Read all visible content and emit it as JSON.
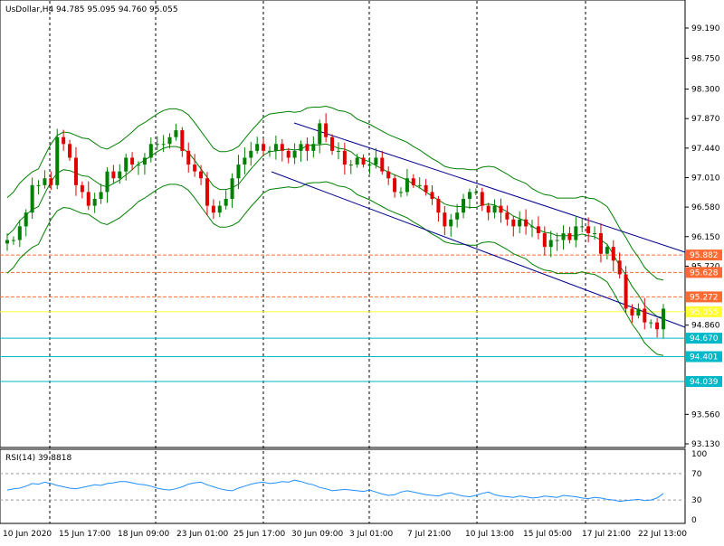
{
  "header": {
    "symbol": "UsDollar,H4",
    "ohlc": "94.785 95.095 94.760 95.055"
  },
  "rsi": {
    "label": "RSI(14) 39.8818",
    "levels": [
      70,
      30
    ],
    "scale_labels": [
      "100",
      "70",
      "30",
      "0"
    ],
    "color": "#1e90ff"
  },
  "colors": {
    "bull": "#008000",
    "bear": "#e00000",
    "bands": "#008000",
    "channel": "#00008b",
    "resistance": "#ff6a33",
    "support": "#00b8c8",
    "current": "#ffff33"
  },
  "chart_data": {
    "type": "candlestick",
    "price_axis": {
      "ticks": [
        "99.190",
        "98.750",
        "98.300",
        "97.870",
        "97.440",
        "97.010",
        "96.580",
        "96.150",
        "95.720",
        "94.860",
        "93.560",
        "93.130"
      ],
      "range": [
        93.13,
        99.4
      ]
    },
    "time_axis": {
      "labels": [
        "10 Jun 2020",
        "15 Jun 17:00",
        "18 Jun 09:00",
        "23 Jun 01:00",
        "25 Jun 17:00",
        "30 Jun 09:00",
        "3 Jul 01:00",
        "7 Jul 21:00",
        "10 Jul 13:00",
        "15 Jul 05:00",
        "17 Jul 21:00",
        "22 Jul 13:00"
      ]
    },
    "horizontal_levels": [
      {
        "value": 95.882,
        "label": "95.882",
        "kind": "resistance"
      },
      {
        "value": 95.628,
        "label": "95.628",
        "kind": "resistance"
      },
      {
        "value": 95.272,
        "label": "95.272",
        "kind": "resistance"
      },
      {
        "value": 95.055,
        "label": "95.055",
        "kind": "current"
      },
      {
        "value": 94.67,
        "label": "94.670",
        "kind": "support"
      },
      {
        "value": 94.401,
        "label": "94.401",
        "kind": "support"
      },
      {
        "value": 94.039,
        "label": "94.039",
        "kind": "support"
      }
    ],
    "price_path": [
      96.1,
      96.1,
      96.3,
      96.5,
      96.9,
      96.9,
      97.0,
      96.9,
      97.6,
      97.5,
      97.3,
      96.9,
      96.8,
      96.6,
      96.7,
      96.8,
      97.1,
      97.0,
      97.1,
      97.3,
      97.2,
      97.2,
      97.3,
      97.5,
      97.5,
      97.5,
      97.6,
      97.7,
      97.4,
      97.2,
      97.1,
      97.0,
      96.6,
      96.5,
      96.6,
      96.7,
      97.0,
      97.2,
      97.3,
      97.4,
      97.5,
      97.4,
      97.4,
      97.5,
      97.4,
      97.3,
      97.4,
      97.5,
      97.4,
      97.5,
      97.8,
      97.6,
      97.4,
      97.4,
      97.2,
      97.2,
      97.3,
      97.2,
      97.2,
      97.3,
      97.1,
      97.0,
      96.8,
      96.8,
      97.0,
      96.9,
      96.9,
      96.8,
      96.7,
      96.5,
      96.3,
      96.4,
      96.5,
      96.7,
      96.8,
      96.8,
      96.6,
      96.5,
      96.6,
      96.5,
      96.4,
      96.3,
      96.4,
      96.3,
      96.3,
      96.2,
      96.0,
      96.1,
      96.1,
      96.2,
      96.1,
      96.3,
      96.3,
      96.2,
      96.2,
      95.9,
      96.0,
      95.8,
      95.6,
      95.1,
      95.0,
      95.1,
      94.9,
      94.9,
      94.8,
      95.1
    ],
    "rsi_values": [
      45,
      47,
      48,
      51,
      55,
      54,
      57,
      55,
      52,
      50,
      48,
      47,
      49,
      51,
      53,
      52,
      55,
      56,
      58,
      58,
      56,
      54,
      53,
      51,
      48,
      46,
      45,
      47,
      50,
      54,
      56,
      57,
      53,
      50,
      47,
      45,
      44,
      48,
      51,
      54,
      56,
      57,
      55,
      56,
      58,
      57,
      60,
      58,
      55,
      53,
      49,
      47,
      44,
      45,
      46,
      45,
      44,
      43,
      45,
      42,
      39,
      37,
      38,
      42,
      44,
      42,
      40,
      38,
      37,
      36,
      39,
      41,
      38,
      36,
      35,
      37,
      40,
      42,
      38,
      36,
      35,
      34,
      36,
      35,
      33,
      34,
      36,
      35,
      34,
      37,
      36,
      35,
      33,
      32,
      34,
      33,
      31,
      30,
      28,
      29,
      30,
      31,
      29,
      30,
      33,
      40
    ],
    "rsi_range": [
      0,
      100
    ]
  }
}
